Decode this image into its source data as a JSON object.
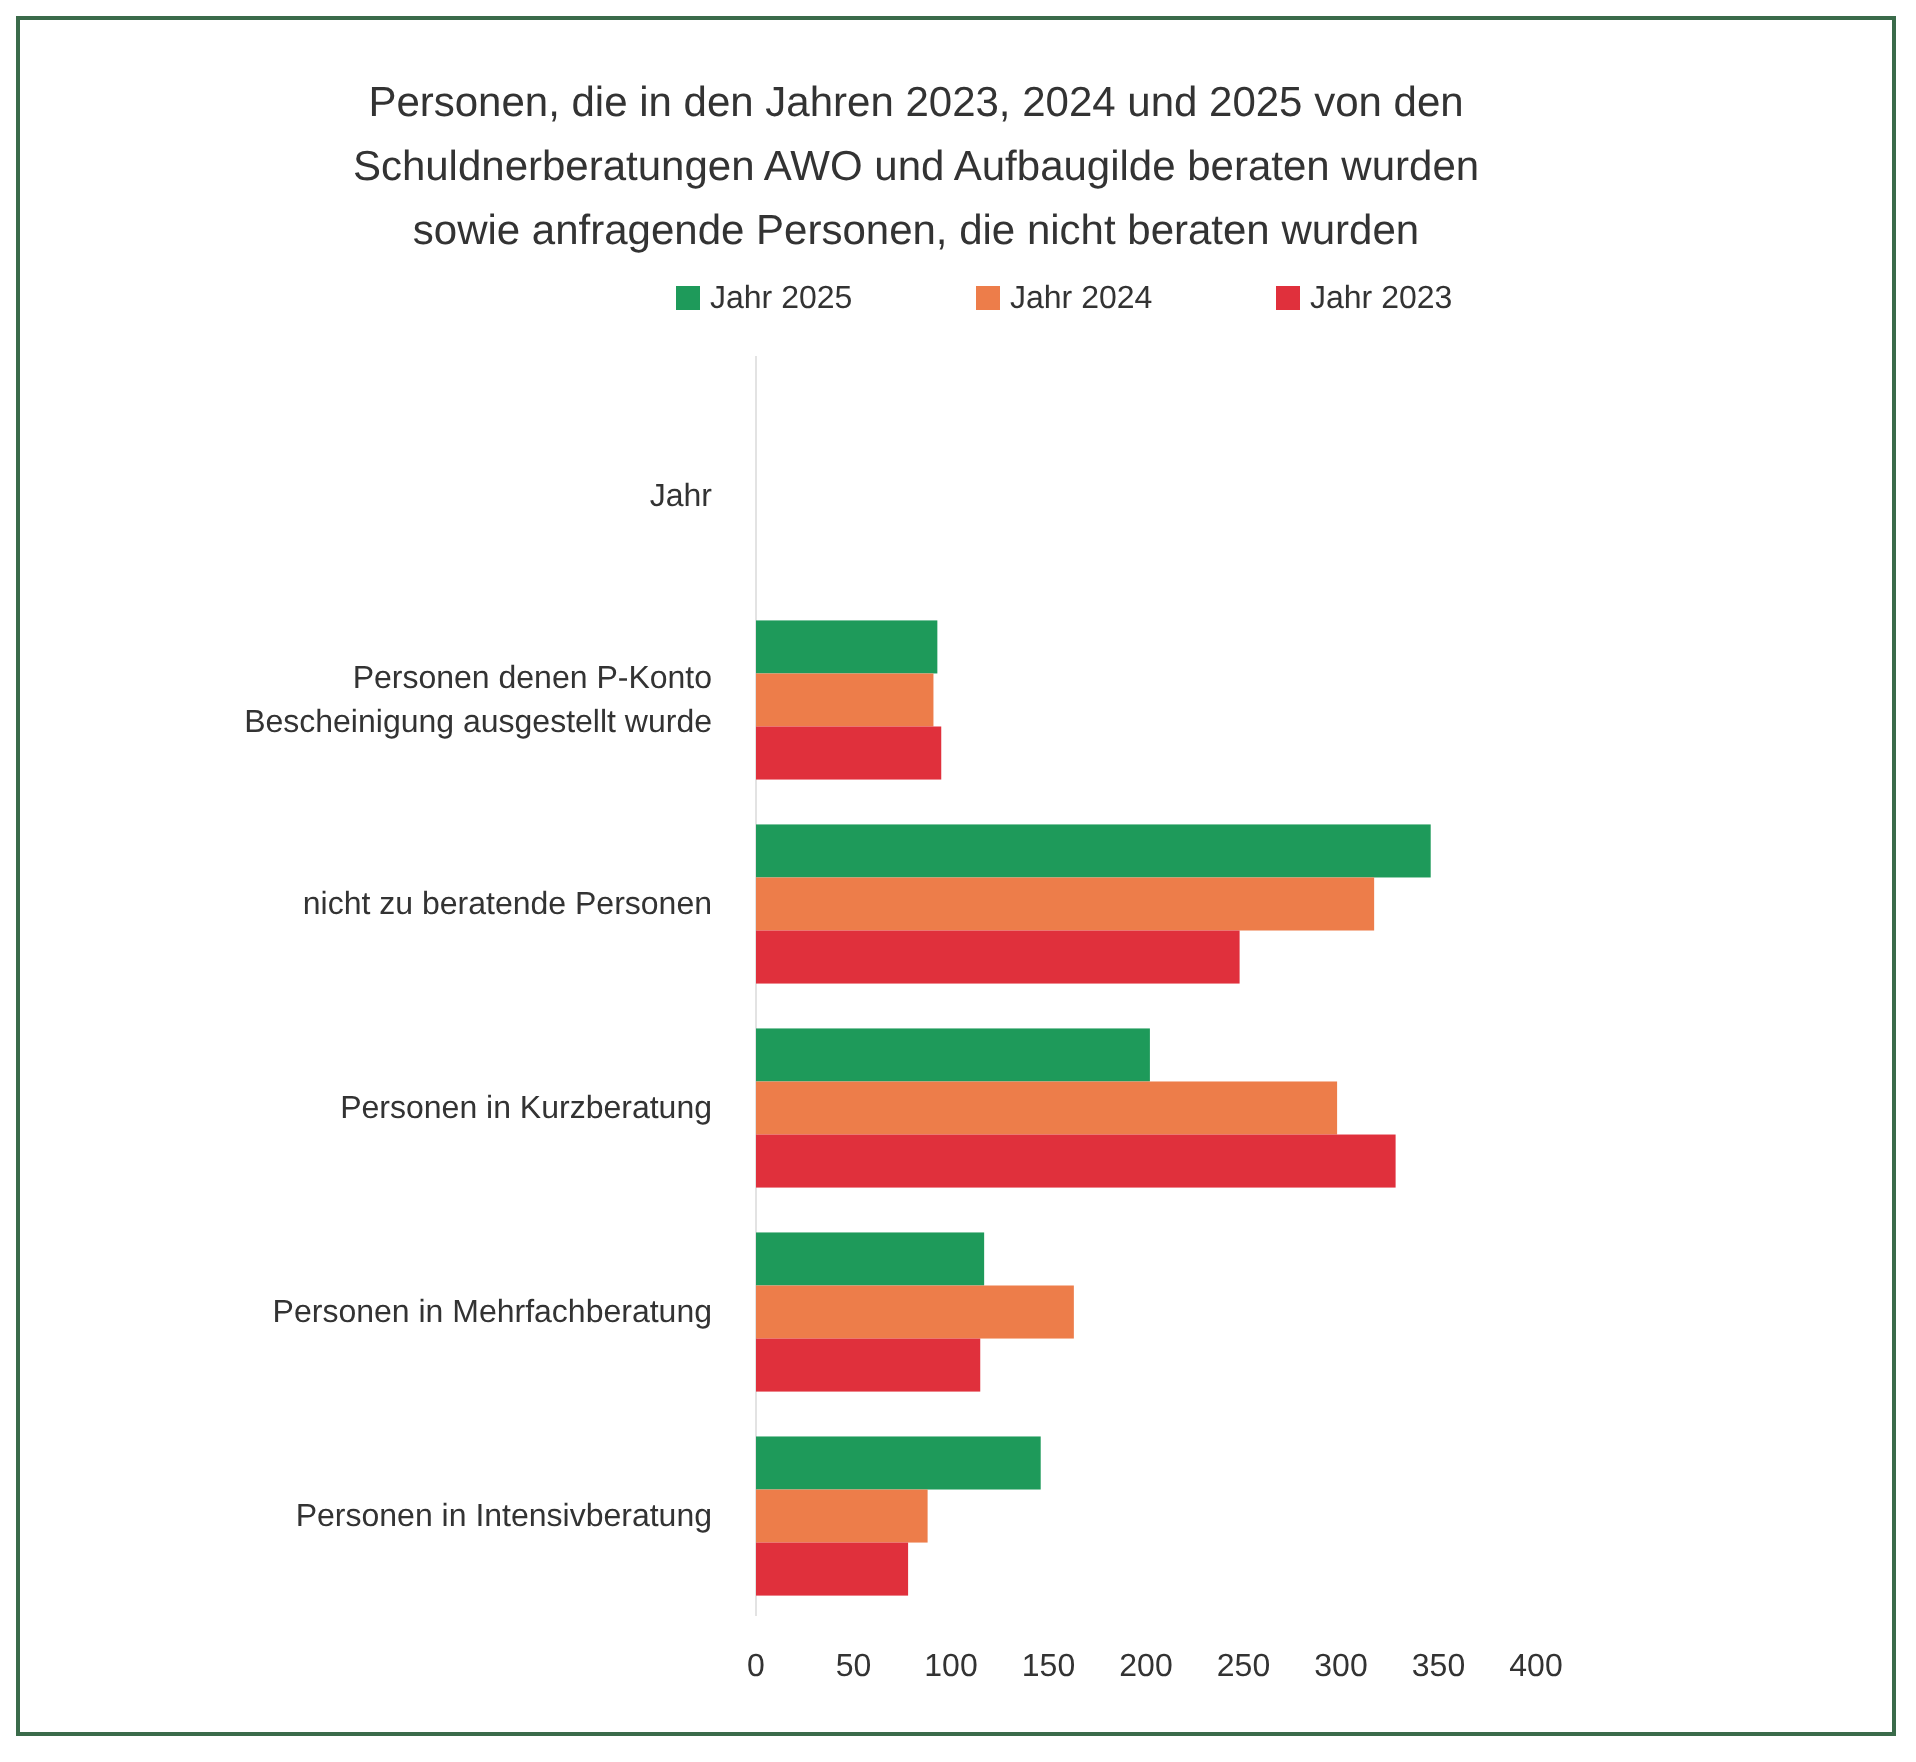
{
  "chart_data": {
    "type": "bar",
    "orientation": "horizontal",
    "title": "Personen, die in den Jahren 2023, 2024 und 2025 von den Schuldnerberatungen AWO und Aufbaugilde beraten wurden sowie anfragende Personen, die nicht beraten wurden",
    "categories": [
      "Jahr",
      "Personen denen P-Konto Bescheinigung ausgestellt wurde",
      "nicht zu beratende Personen",
      "Personen in Kurzberatung",
      "Personen in Mehrfachberatung",
      "Personen in Intensivberatung"
    ],
    "series": [
      {
        "name": "Jahr 2025",
        "color": "#1e9a5a",
        "values": [
          null,
          93,
          346,
          202,
          117,
          146
        ]
      },
      {
        "name": "Jahr 2024",
        "color": "#ed7d4a",
        "values": [
          null,
          91,
          317,
          298,
          163,
          88
        ]
      },
      {
        "name": "Jahr 2023",
        "color": "#e0303c",
        "values": [
          null,
          95,
          248,
          328,
          115,
          78
        ]
      }
    ],
    "xlim": [
      0,
      400
    ],
    "xticks": [
      0,
      50,
      100,
      150,
      200,
      250,
      300,
      350,
      400
    ],
    "grid": false,
    "legend": "top"
  }
}
